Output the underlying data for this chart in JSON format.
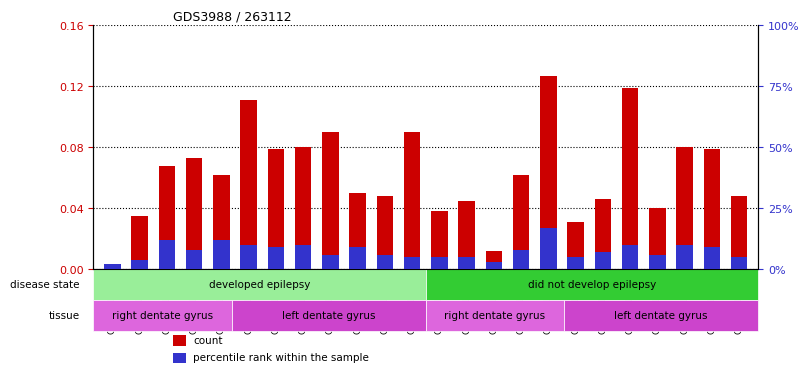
{
  "title": "GDS3988 / 263112",
  "samples": [
    "GSM671498",
    "GSM671500",
    "GSM671502",
    "GSM671510",
    "GSM671512",
    "GSM671514",
    "GSM671499",
    "GSM671501",
    "GSM671503",
    "GSM671511",
    "GSM671513",
    "GSM671515",
    "GSM671504",
    "GSM671506",
    "GSM671508",
    "GSM671517",
    "GSM671519",
    "GSM671521",
    "GSM671505",
    "GSM671507",
    "GSM671509",
    "GSM671516",
    "GSM671518",
    "GSM671520"
  ],
  "count_values": [
    0.0,
    0.035,
    0.068,
    0.073,
    0.062,
    0.111,
    0.079,
    0.08,
    0.09,
    0.05,
    0.048,
    0.09,
    0.038,
    0.045,
    0.012,
    0.062,
    0.127,
    0.031,
    0.046,
    0.119,
    0.04,
    0.08,
    0.079,
    0.048
  ],
  "percentile_values": [
    0.003,
    0.005,
    0.015,
    0.01,
    0.015,
    0.013,
    0.012,
    0.013,
    0.008,
    0.012,
    0.008,
    0.007,
    0.006,
    0.007,
    0.004,
    0.01,
    0.022,
    0.006,
    0.01,
    0.013,
    0.008,
    0.013,
    0.012,
    0.007
  ],
  "ylim_left": [
    0,
    0.16
  ],
  "ylim_right": [
    0,
    100
  ],
  "yticks_left": [
    0,
    0.04,
    0.08,
    0.12,
    0.16
  ],
  "yticks_right": [
    0,
    25,
    50,
    75,
    100
  ],
  "color_count": "#cc0000",
  "color_percentile": "#3333cc",
  "color_bg": "#ffffff",
  "disease_state_groups": [
    {
      "label": "developed epilepsy",
      "start": 0,
      "end": 11,
      "color": "#99ee99"
    },
    {
      "label": "did not develop epilepsy",
      "start": 12,
      "end": 23,
      "color": "#33cc33"
    }
  ],
  "tissue_groups": [
    {
      "label": "right dentate gyrus",
      "start": 0,
      "end": 4,
      "color": "#dd66dd"
    },
    {
      "label": "left dentate gyrus",
      "start": 5,
      "end": 11,
      "color": "#cc44cc"
    },
    {
      "label": "right dentate gyrus",
      "start": 12,
      "end": 16,
      "color": "#dd66dd"
    },
    {
      "label": "left dentate gyrus",
      "start": 17,
      "end": 23,
      "color": "#cc44cc"
    }
  ],
  "legend_count_label": "count",
  "legend_percentile_label": "percentile rank within the sample",
  "bar_width": 0.6,
  "grid_style": "dotted"
}
